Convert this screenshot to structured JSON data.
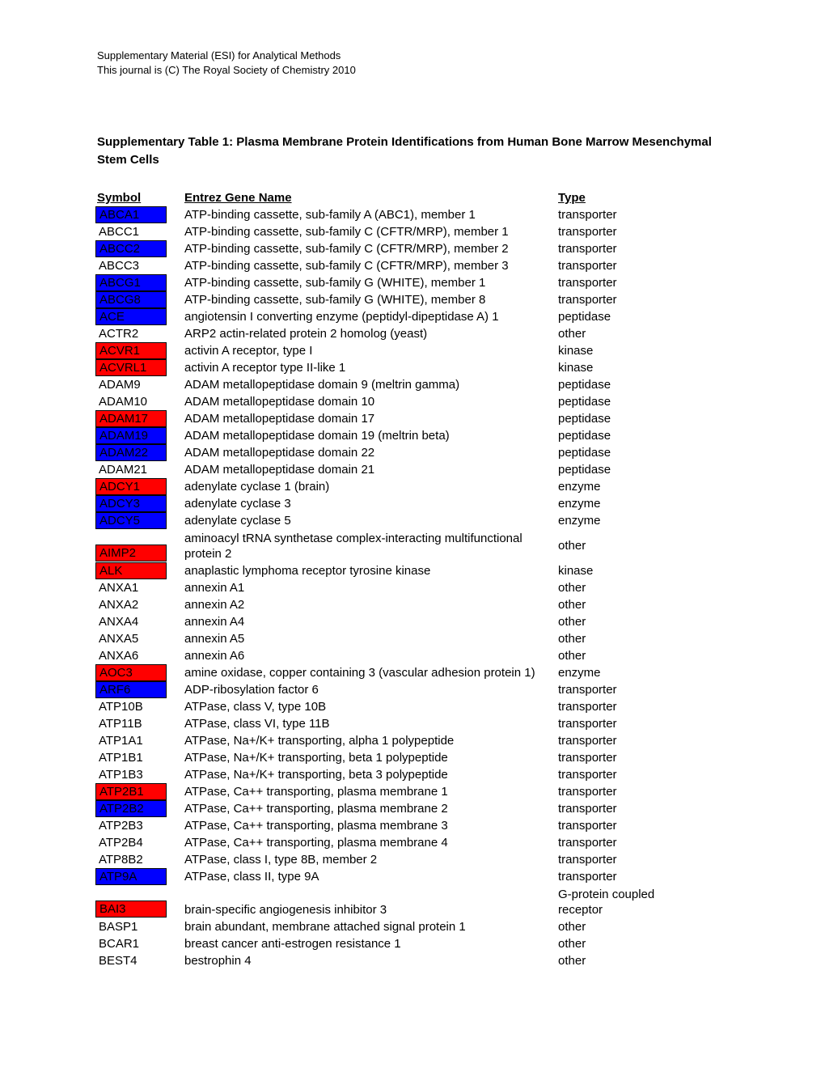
{
  "header": {
    "line1": "Supplementary Material (ESI) for Analytical Methods",
    "line2": "This journal is (C) The Royal Society of Chemistry 2010"
  },
  "title": "Supplementary Table 1: Plasma Membrane Protein Identifications from Human Bone Marrow Mesenchymal Stem Cells",
  "columns": {
    "symbol": "Symbol",
    "gene": "Entrez Gene Name",
    "type": "Type"
  },
  "colors": {
    "blue": "#0000ff",
    "red": "#ff0000",
    "none": ""
  },
  "rows": [
    {
      "symbol": "ABCA1",
      "gene": "ATP-binding cassette, sub-family A (ABC1), member 1",
      "type": "transporter",
      "hl": "blue"
    },
    {
      "symbol": "ABCC1",
      "gene": "ATP-binding cassette, sub-family C (CFTR/MRP), member 1",
      "type": "transporter",
      "hl": "none"
    },
    {
      "symbol": "ABCC2",
      "gene": "ATP-binding cassette, sub-family C (CFTR/MRP), member 2",
      "type": "transporter",
      "hl": "blue"
    },
    {
      "symbol": "ABCC3",
      "gene": "ATP-binding cassette, sub-family C (CFTR/MRP), member 3",
      "type": "transporter",
      "hl": "none"
    },
    {
      "symbol": "ABCG1",
      "gene": "ATP-binding cassette, sub-family G (WHITE), member 1",
      "type": "transporter",
      "hl": "blue"
    },
    {
      "symbol": "ABCG8",
      "gene": "ATP-binding cassette, sub-family G (WHITE), member 8",
      "type": "transporter",
      "hl": "blue"
    },
    {
      "symbol": "ACE",
      "gene": "angiotensin I converting enzyme (peptidyl-dipeptidase A) 1",
      "type": "peptidase",
      "hl": "blue"
    },
    {
      "symbol": "ACTR2",
      "gene": "ARP2 actin-related protein 2 homolog (yeast)",
      "type": "other",
      "hl": "none"
    },
    {
      "symbol": "ACVR1",
      "gene": "activin A receptor, type I",
      "type": "kinase",
      "hl": "red"
    },
    {
      "symbol": "ACVRL1",
      "gene": "activin A receptor type II-like 1",
      "type": "kinase",
      "hl": "red"
    },
    {
      "symbol": "ADAM9",
      "gene": "ADAM metallopeptidase domain 9 (meltrin gamma)",
      "type": "peptidase",
      "hl": "none"
    },
    {
      "symbol": "ADAM10",
      "gene": "ADAM metallopeptidase domain 10",
      "type": "peptidase",
      "hl": "none"
    },
    {
      "symbol": "ADAM17",
      "gene": "ADAM metallopeptidase domain 17",
      "type": "peptidase",
      "hl": "red"
    },
    {
      "symbol": "ADAM19",
      "gene": "ADAM metallopeptidase domain 19 (meltrin beta)",
      "type": "peptidase",
      "hl": "blue"
    },
    {
      "symbol": "ADAM22",
      "gene": "ADAM metallopeptidase domain 22",
      "type": "peptidase",
      "hl": "blue"
    },
    {
      "symbol": "ADAM21",
      "gene": "ADAM metallopeptidase domain 21",
      "type": "peptidase",
      "hl": "none"
    },
    {
      "symbol": "ADCY1",
      "gene": "adenylate cyclase 1 (brain)",
      "type": "enzyme",
      "hl": "red"
    },
    {
      "symbol": "ADCY3",
      "gene": "adenylate cyclase 3",
      "type": "enzyme",
      "hl": "blue"
    },
    {
      "symbol": "ADCY5",
      "gene": "adenylate cyclase 5",
      "type": "enzyme",
      "hl": "blue"
    },
    {
      "symbol": "AIMP2",
      "gene": "aminoacyl tRNA synthetase complex-interacting multifunctional protein 2",
      "type": "other",
      "hl": "red",
      "multi": true
    },
    {
      "symbol": "ALK",
      "gene": "anaplastic lymphoma receptor tyrosine kinase",
      "type": "kinase",
      "hl": "red"
    },
    {
      "symbol": "ANXA1",
      "gene": "annexin A1",
      "type": "other",
      "hl": "none"
    },
    {
      "symbol": "ANXA2",
      "gene": "annexin A2",
      "type": "other",
      "hl": "none"
    },
    {
      "symbol": "ANXA4",
      "gene": "annexin A4",
      "type": "other",
      "hl": "none"
    },
    {
      "symbol": "ANXA5",
      "gene": "annexin A5",
      "type": "other",
      "hl": "none"
    },
    {
      "symbol": "ANXA6",
      "gene": "annexin A6",
      "type": "other",
      "hl": "none"
    },
    {
      "symbol": "AOC3",
      "gene": "amine oxidase, copper containing 3 (vascular adhesion protein 1)",
      "type": "enzyme",
      "hl": "red"
    },
    {
      "symbol": "ARF6",
      "gene": "ADP-ribosylation factor 6",
      "type": "transporter",
      "hl": "blue"
    },
    {
      "symbol": "ATP10B",
      "gene": "ATPase, class V, type 10B",
      "type": "transporter",
      "hl": "none"
    },
    {
      "symbol": "ATP11B",
      "gene": "ATPase, class VI, type 11B",
      "type": "transporter",
      "hl": "none"
    },
    {
      "symbol": "ATP1A1",
      "gene": "ATPase, Na+/K+ transporting, alpha 1 polypeptide",
      "type": "transporter",
      "hl": "none"
    },
    {
      "symbol": "ATP1B1",
      "gene": "ATPase, Na+/K+ transporting, beta 1 polypeptide",
      "type": "transporter",
      "hl": "none"
    },
    {
      "symbol": "ATP1B3",
      "gene": "ATPase, Na+/K+ transporting, beta 3 polypeptide",
      "type": "transporter",
      "hl": "none"
    },
    {
      "symbol": "ATP2B1",
      "gene": "ATPase, Ca++ transporting, plasma membrane 1",
      "type": "transporter",
      "hl": "red"
    },
    {
      "symbol": "ATP2B2",
      "gene": "ATPase, Ca++ transporting, plasma membrane 2",
      "type": "transporter",
      "hl": "blue"
    },
    {
      "symbol": "ATP2B3",
      "gene": "ATPase, Ca++ transporting, plasma membrane 3",
      "type": "transporter",
      "hl": "none"
    },
    {
      "symbol": "ATP2B4",
      "gene": "ATPase, Ca++ transporting, plasma membrane 4",
      "type": "transporter",
      "hl": "none"
    },
    {
      "symbol": "ATP8B2",
      "gene": "ATPase, class I, type 8B, member 2",
      "type": "transporter",
      "hl": "none"
    },
    {
      "symbol": "ATP9A",
      "gene": "ATPase, class II, type 9A",
      "type": "transporter",
      "hl": "blue"
    },
    {
      "symbol": "BAI3",
      "gene": "brain-specific angiogenesis inhibitor 3",
      "type": "G-protein coupled receptor",
      "hl": "red",
      "multi": true,
      "multi_type": true
    },
    {
      "symbol": "BASP1",
      "gene": "brain abundant, membrane attached signal protein 1",
      "type": "other",
      "hl": "none"
    },
    {
      "symbol": "BCAR1",
      "gene": "breast cancer anti-estrogen resistance 1",
      "type": "other",
      "hl": "none"
    },
    {
      "symbol": "BEST4",
      "gene": "bestrophin 4",
      "type": "other",
      "hl": "none"
    }
  ]
}
